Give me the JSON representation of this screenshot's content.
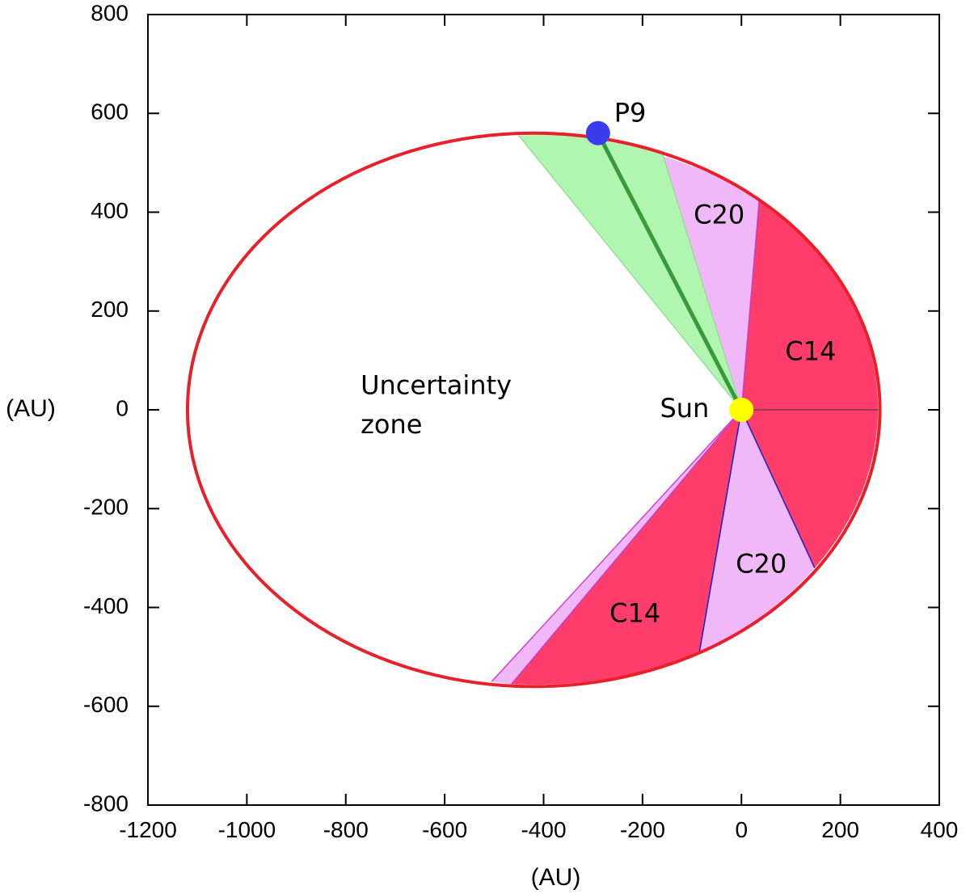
{
  "chart_data": {
    "type": "scatter",
    "title": "",
    "xlabel": "(AU)",
    "ylabel": "(AU)",
    "xlim": [
      -1200,
      400
    ],
    "ylim": [
      -800,
      800
    ],
    "xticks": [
      -1200,
      -1000,
      -800,
      -600,
      -400,
      -200,
      0,
      200,
      400
    ],
    "yticks": [
      -800,
      -600,
      -400,
      -200,
      0,
      200,
      400,
      600,
      800
    ],
    "grid": false,
    "orbit": {
      "center": [
        -420,
        0
      ],
      "semi_major_axis": 700,
      "semi_minor_axis": 560,
      "color": "#e8202a"
    },
    "sectors": [
      {
        "label": "C14",
        "color": "#ff3d6b",
        "edge_color": "#2222cc",
        "from": [
          36,
          425
        ],
        "to": [
          148,
          -320
        ],
        "label_pos": [
          140,
          115
        ]
      },
      {
        "label": "C20",
        "color": "#f0b8f8",
        "edge_color": "#cc44cc",
        "from": [
          -165,
          515
        ],
        "to": [
          36,
          425
        ],
        "label_pos": [
          -45,
          392
        ]
      },
      {
        "label": "C20",
        "color": "#f0b8f8",
        "edge_color": "#2222cc",
        "from": [
          148,
          -320
        ],
        "to": [
          -85,
          -490
        ],
        "label_pos": [
          40,
          -315
        ]
      },
      {
        "label": "C14",
        "color": "#ff3d6b",
        "edge_color": "#2222cc",
        "from": [
          -85,
          -490
        ],
        "to": [
          -465,
          -555
        ],
        "label_pos": [
          -215,
          -415
        ]
      },
      {
        "label": "",
        "color": "#f0b8f8",
        "edge_color": "#cc44cc",
        "from": [
          -465,
          -555
        ],
        "to": [
          -505,
          -550
        ]
      },
      {
        "label": "",
        "color": "#b0f6b0",
        "edge_color": "#99dd99",
        "from": [
          -450,
          555
        ],
        "to": [
          -160,
          520
        ]
      }
    ],
    "p9_direction": {
      "from": [
        0,
        0
      ],
      "to": [
        -290,
        560
      ],
      "color": "#3a9a3a"
    },
    "reference_line": {
      "from": [
        0,
        0
      ],
      "to": [
        280,
        0
      ]
    },
    "points": [
      {
        "name": "P9",
        "x": -290,
        "y": 560,
        "color": "#3b3bf0",
        "label_pos": [
          -225,
          598
        ]
      },
      {
        "name": "Sun",
        "x": 0,
        "y": 0,
        "color": "#ffff00",
        "label_pos": [
          -115,
          0
        ]
      }
    ],
    "annotations": [
      {
        "text": "Uncertainty",
        "x": -770,
        "y": 47
      },
      {
        "text": "zone",
        "x": -770,
        "y": -33
      }
    ]
  }
}
